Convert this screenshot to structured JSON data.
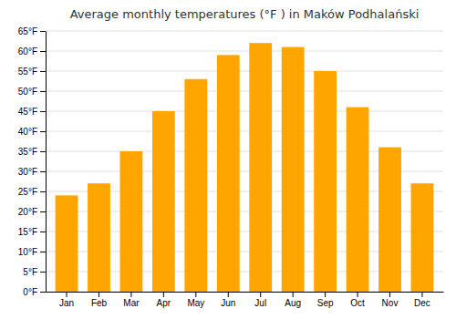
{
  "chart_data": {
    "type": "bar",
    "title": "Average monthly temperatures (°F ) in Maków Podhalański",
    "categories": [
      "Jan",
      "Feb",
      "Mar",
      "Apr",
      "May",
      "Jun",
      "Jul",
      "Aug",
      "Sep",
      "Oct",
      "Nov",
      "Dec"
    ],
    "values": [
      24,
      27,
      35,
      45,
      53,
      59,
      62,
      61,
      55,
      46,
      36,
      27
    ],
    "color": "#FFA500",
    "ylim": [
      0,
      65
    ],
    "yticks": [
      {
        "value": 0,
        "label": "0°F"
      },
      {
        "value": 5,
        "label": "5°F"
      },
      {
        "value": 10,
        "label": "10°F"
      },
      {
        "value": 15,
        "label": "15°F"
      },
      {
        "value": 20,
        "label": "20°F"
      },
      {
        "value": 25,
        "label": "25°F"
      },
      {
        "value": 30,
        "label": "30°F"
      },
      {
        "value": 35,
        "label": "35°F"
      },
      {
        "value": 40,
        "label": "40°F"
      },
      {
        "value": 45,
        "label": "45°F"
      },
      {
        "value": 50,
        "label": "50°F"
      },
      {
        "value": 55,
        "label": "55°F"
      },
      {
        "value": 60,
        "label": "60°F"
      },
      {
        "value": 65,
        "label": "65°F"
      }
    ],
    "grid": true
  }
}
